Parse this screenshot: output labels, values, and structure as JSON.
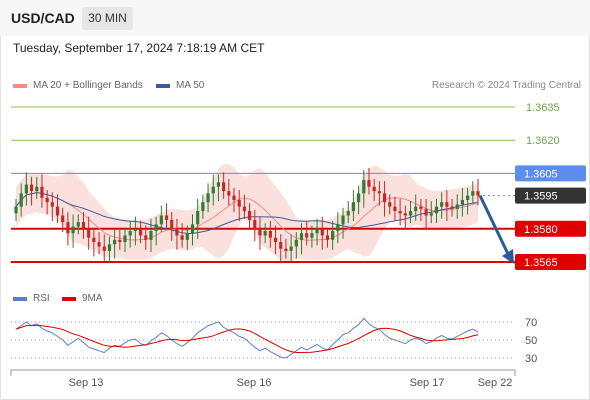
{
  "header": {
    "symbol": "USD/CAD",
    "timeframe": "30 MIN"
  },
  "datetime": "Tuesday, September 17, 2024 7:18:19 AM CET",
  "legend": [
    {
      "label": "MA 20 + Bollinger Bands",
      "color": "#f28b82"
    },
    {
      "label": "MA 50",
      "color": "#3c5a99"
    }
  ],
  "copyright": "Research © 2024 Trading Central",
  "rsi_legend": [
    {
      "label": "RSI",
      "color": "#5b7fd1"
    },
    {
      "label": "9MA",
      "color": "#e00000"
    }
  ],
  "colors": {
    "up": "#2e7d32",
    "down": "#c62828",
    "bollinger": "#f9d7d3",
    "ma20": "#f28b82",
    "ma50": "#3c5a99"
  },
  "chart_data": {
    "type": "candlestick",
    "price_levels": [
      {
        "label": "1.3635",
        "value": 1.3635,
        "kind": "target",
        "color": "#8bc34a"
      },
      {
        "label": "1.3620",
        "value": 1.362,
        "kind": "target",
        "color": "#8bc34a"
      },
      {
        "label": "1.3605",
        "value": 1.3605,
        "kind": "resistance",
        "color": "#5b8def"
      },
      {
        "label": "1.3595",
        "value": 1.3595,
        "kind": "last",
        "color": "#333333"
      },
      {
        "label": "1.3580",
        "value": 1.358,
        "kind": "support",
        "color": "#e00000"
      },
      {
        "label": "1.3565",
        "value": 1.3565,
        "kind": "support",
        "color": "#e00000"
      }
    ],
    "x_ticks": [
      "Sep 13",
      "Sep 16",
      "Sep 17",
      "Sep 22"
    ],
    "rsi_ticks": [
      "70",
      "50",
      "30"
    ],
    "forecast": {
      "from": 1.3595,
      "to": 1.3565
    },
    "close": [
      1.359,
      1.3596,
      1.36,
      1.3597,
      1.3599,
      1.3594,
      1.3592,
      1.359,
      1.3586,
      1.3583,
      1.3578,
      1.3581,
      1.3583,
      1.358,
      1.3576,
      1.3574,
      1.3572,
      1.357,
      1.3573,
      1.3575,
      1.3574,
      1.3577,
      1.3579,
      1.358,
      1.3577,
      1.3575,
      1.3579,
      1.3582,
      1.3586,
      1.3584,
      1.358,
      1.3577,
      1.3575,
      1.3578,
      1.3582,
      1.3588,
      1.3592,
      1.3596,
      1.3599,
      1.3601,
      1.3597,
      1.3595,
      1.3593,
      1.359,
      1.3588,
      1.3584,
      1.358,
      1.3577,
      1.3579,
      1.3576,
      1.3574,
      1.3571,
      1.357,
      1.3572,
      1.3575,
      1.3578,
      1.3576,
      1.3578,
      1.358,
      1.3577,
      1.3575,
      1.3579,
      1.3582,
      1.3586,
      1.3588,
      1.3592,
      1.3596,
      1.3602,
      1.3599,
      1.3597,
      1.3596,
      1.3592,
      1.359,
      1.3588,
      1.3587,
      1.3586,
      1.3588,
      1.359,
      1.3589,
      1.3586,
      1.3587,
      1.359,
      1.3592,
      1.359,
      1.3589,
      1.3591,
      1.3593,
      1.3595,
      1.3597,
      1.3595
    ],
    "rsi": [
      62,
      66,
      70,
      66,
      68,
      63,
      60,
      58,
      54,
      50,
      44,
      48,
      52,
      47,
      42,
      40,
      38,
      36,
      41,
      44,
      43,
      47,
      50,
      51,
      46,
      44,
      49,
      53,
      58,
      55,
      50,
      46,
      43,
      47,
      52,
      58,
      62,
      66,
      68,
      70,
      64,
      61,
      58,
      54,
      52,
      47,
      42,
      38,
      41,
      37,
      34,
      31,
      30,
      34,
      38,
      42,
      39,
      42,
      45,
      41,
      39,
      45,
      50,
      56,
      58,
      63,
      67,
      74,
      68,
      64,
      62,
      56,
      52,
      50,
      48,
      46,
      50,
      52,
      50,
      46,
      48,
      52,
      55,
      52,
      51,
      54,
      57,
      60,
      62,
      59
    ]
  }
}
